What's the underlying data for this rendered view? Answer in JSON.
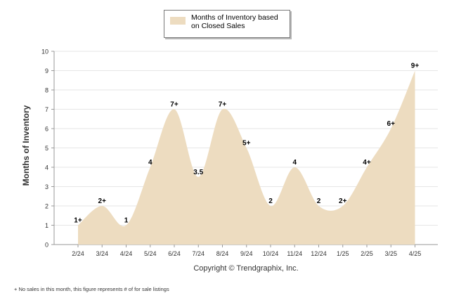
{
  "legend": {
    "label": "Months of Inventory based on Closed Sales",
    "color": "#eddcc0"
  },
  "copyright": "Copyright © Trendgraphix, Inc.",
  "footnote": "+ No sales in this month, this figure represents # of for sale listings",
  "chart_data": {
    "type": "area",
    "ylabel": "Months of Inventory",
    "xlabel": "",
    "ylim": [
      0,
      10
    ],
    "yticks": [
      0,
      1,
      2,
      3,
      4,
      5,
      6,
      7,
      8,
      9,
      10
    ],
    "grid": "horizontal",
    "legend_position": "top-center",
    "categories": [
      "2/24",
      "3/24",
      "4/24",
      "5/24",
      "6/24",
      "7/24",
      "8/24",
      "9/24",
      "10/24",
      "11/24",
      "12/24",
      "1/25",
      "2/25",
      "3/25",
      "4/25"
    ],
    "series": [
      {
        "name": "Months of Inventory based on Closed Sales",
        "values": [
          1,
          2,
          1,
          4,
          7,
          3.5,
          7,
          5,
          2,
          4,
          2,
          2,
          4,
          6,
          9
        ],
        "labels": [
          "1+",
          "2+",
          "1",
          "4",
          "7+",
          "3.5",
          "7+",
          "5+",
          "2",
          "4",
          "2",
          "2+",
          "4+",
          "6+",
          "9+"
        ]
      }
    ],
    "colors": {
      "area": "#eddcc0",
      "grid": "#e6e6e6",
      "axis": "#999999"
    }
  }
}
